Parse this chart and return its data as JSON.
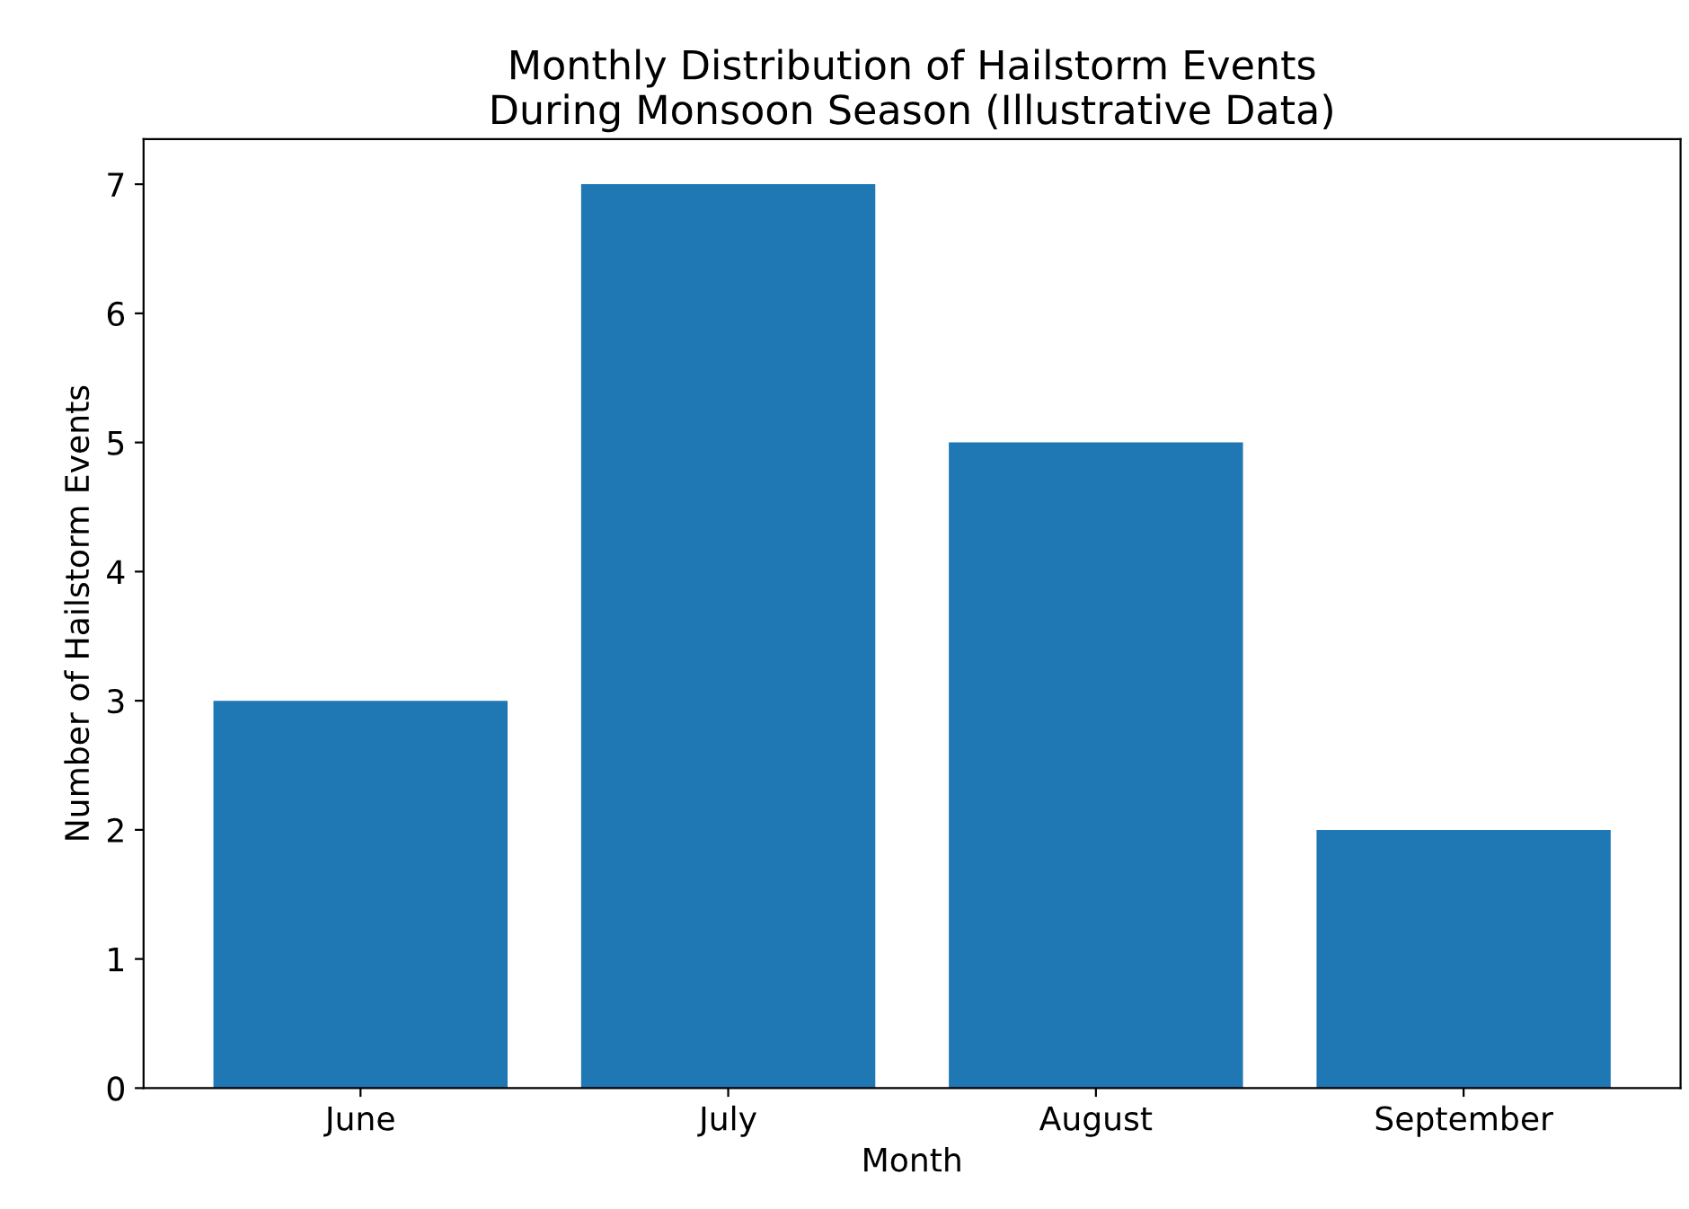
{
  "chart_data": {
    "type": "bar",
    "title": "Monthly Distribution of Hailstorm Events\nDuring Monsoon Season (Illustrative Data)",
    "xlabel": "Month",
    "ylabel": "Number of Hailstorm Events",
    "categories": [
      "June",
      "July",
      "August",
      "September"
    ],
    "values": [
      3,
      7,
      5,
      2
    ],
    "color": "#1f77b4",
    "ylim": [
      0,
      7.35
    ],
    "yticks": [
      0,
      1,
      2,
      3,
      4,
      5,
      6,
      7
    ],
    "grid": false,
    "legend": false
  }
}
